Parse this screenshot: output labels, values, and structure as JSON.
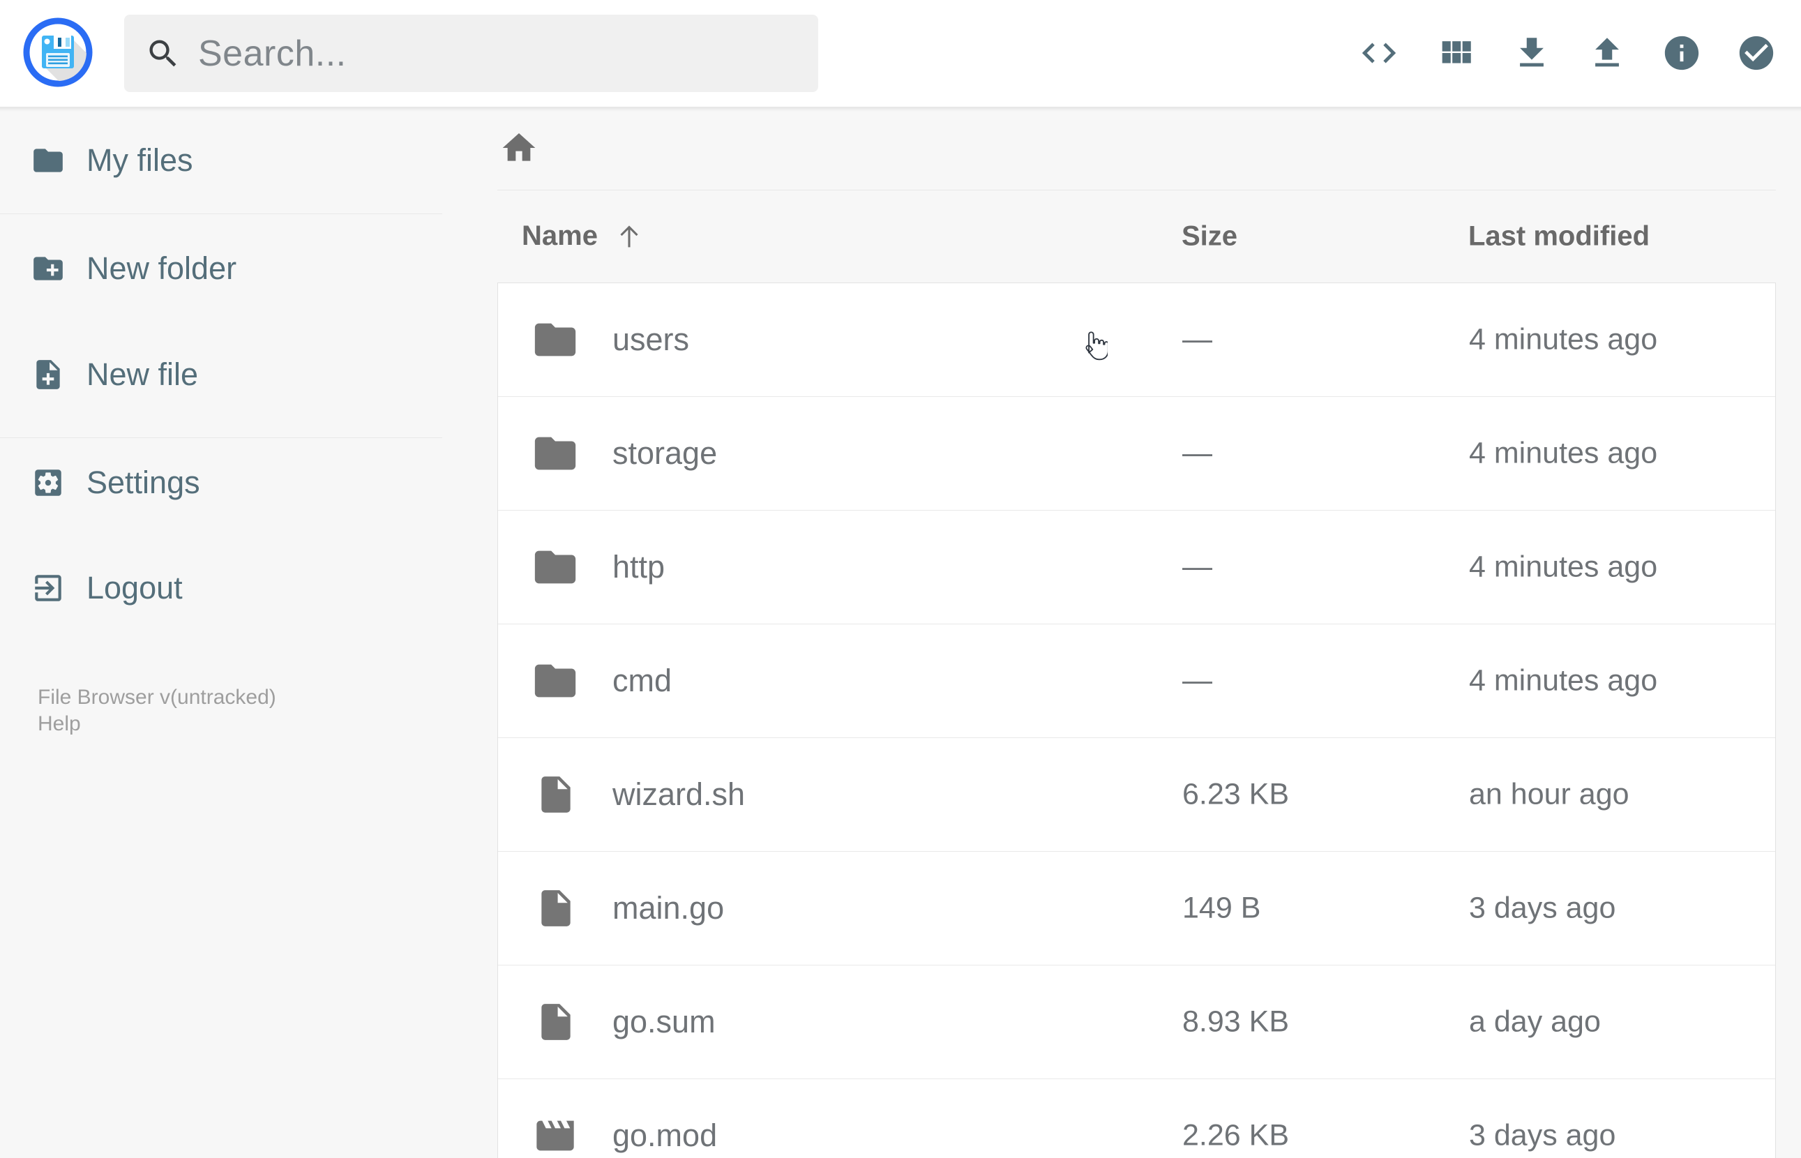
{
  "app": {
    "name": "File Browser",
    "accent_color": "#2a6cf4",
    "slate_icon_color": "#546e7a",
    "file_icon_color": "#757575"
  },
  "header": {
    "search": {
      "placeholder": "Search...",
      "icon": "search-icon"
    },
    "actions": [
      {
        "name": "switch-view-button",
        "icon": "code-icon"
      },
      {
        "name": "view-mode-button",
        "icon": "grid-icon"
      },
      {
        "name": "download-button",
        "icon": "download-icon"
      },
      {
        "name": "upload-button",
        "icon": "upload-icon"
      },
      {
        "name": "info-button",
        "icon": "info-icon"
      },
      {
        "name": "select-multiple-button",
        "icon": "check-circle-icon"
      }
    ]
  },
  "sidebar": {
    "items": [
      {
        "label": "My files",
        "icon": "folder"
      },
      {
        "label": "New folder",
        "icon": "folder-plus"
      },
      {
        "label": "New file",
        "icon": "file-plus"
      },
      {
        "label": "Settings",
        "icon": "settings"
      },
      {
        "label": "Logout",
        "icon": "logout"
      }
    ],
    "footer": {
      "version": "File Browser v(untracked)",
      "help": "Help"
    }
  },
  "breadcrumb": {
    "home_icon": "home-icon"
  },
  "listing": {
    "columns": {
      "name": "Name",
      "size": "Size",
      "modified": "Last modified"
    },
    "sort": {
      "column": "Name",
      "direction": "ascending"
    },
    "items": [
      {
        "name": "users",
        "type": "folder",
        "size": "—",
        "modified": "4 minutes ago"
      },
      {
        "name": "storage",
        "type": "folder",
        "size": "—",
        "modified": "4 minutes ago"
      },
      {
        "name": "http",
        "type": "folder",
        "size": "—",
        "modified": "4 minutes ago"
      },
      {
        "name": "cmd",
        "type": "folder",
        "size": "—",
        "modified": "4 minutes ago"
      },
      {
        "name": "wizard.sh",
        "type": "file",
        "size": "6.23 KB",
        "modified": "an hour ago"
      },
      {
        "name": "main.go",
        "type": "file",
        "size": "149 B",
        "modified": "3 days ago"
      },
      {
        "name": "go.sum",
        "type": "file",
        "size": "8.93 KB",
        "modified": "a day ago"
      },
      {
        "name": "go.mod",
        "type": "movie",
        "size": "2.26 KB",
        "modified": "3 days ago"
      }
    ]
  }
}
